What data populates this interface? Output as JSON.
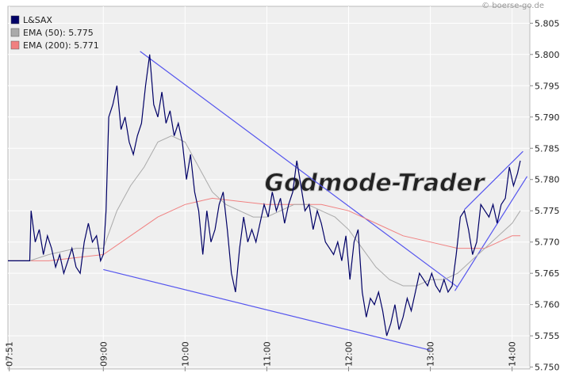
{
  "copyright": "© boerse-go.de",
  "watermark": "Godmode-Trader",
  "chart_data": {
    "type": "line",
    "xlim": [
      470,
      853
    ],
    "ylim": [
      5.7497,
      5.8077
    ],
    "xticks": [
      {
        "value": 471,
        "label": "07:51"
      },
      {
        "value": 540,
        "label": "09:00"
      },
      {
        "value": 600,
        "label": "10:00"
      },
      {
        "value": 660,
        "label": "11:00"
      },
      {
        "value": 720,
        "label": "12:00"
      },
      {
        "value": 780,
        "label": "13:00"
      },
      {
        "value": 840,
        "label": "14:00"
      }
    ],
    "yticks": [
      {
        "value": 5.75,
        "label": "5.750"
      },
      {
        "value": 5.755,
        "label": "5.755"
      },
      {
        "value": 5.76,
        "label": "5.760"
      },
      {
        "value": 5.765,
        "label": "5.765"
      },
      {
        "value": 5.77,
        "label": "5.770"
      },
      {
        "value": 5.775,
        "label": "5.775"
      },
      {
        "value": 5.78,
        "label": "5.780"
      },
      {
        "value": 5.785,
        "label": "5.785"
      },
      {
        "value": 5.79,
        "label": "5.790"
      },
      {
        "value": 5.795,
        "label": "5.795"
      },
      {
        "value": 5.8,
        "label": "5.800"
      },
      {
        "value": 5.805,
        "label": "5.805"
      }
    ],
    "grid": true,
    "series": [
      {
        "name": "L&SAX",
        "color": "#000066",
        "x": [
          470,
          486,
          487,
          490,
          493,
          496,
          499,
          502,
          505,
          508,
          511,
          514,
          517,
          520,
          523,
          526,
          529,
          532,
          535,
          538,
          540,
          542,
          544,
          547,
          550,
          553,
          556,
          559,
          562,
          565,
          568,
          571,
          574,
          577,
          580,
          583,
          586,
          589,
          592,
          595,
          598,
          601,
          604,
          607,
          610,
          613,
          616,
          619,
          622,
          625,
          628,
          631,
          634,
          637,
          640,
          643,
          646,
          649,
          652,
          655,
          658,
          661,
          664,
          667,
          670,
          673,
          676,
          679,
          682,
          685,
          688,
          691,
          694,
          697,
          700,
          703,
          706,
          709,
          712,
          715,
          718,
          721,
          724,
          727,
          730,
          733,
          736,
          739,
          742,
          745,
          748,
          751,
          754,
          757,
          760,
          763,
          766,
          769,
          772,
          775,
          778,
          781,
          784,
          787,
          790,
          793,
          796,
          799,
          802,
          805,
          808,
          811,
          814,
          817,
          820,
          823,
          826,
          829,
          832,
          835,
          838,
          841,
          844,
          846
        ],
        "values": [
          5.767,
          5.767,
          5.775,
          5.77,
          5.772,
          5.768,
          5.771,
          5.769,
          5.766,
          5.768,
          5.765,
          5.767,
          5.769,
          5.766,
          5.765,
          5.77,
          5.773,
          5.77,
          5.771,
          5.767,
          5.768,
          5.775,
          5.79,
          5.792,
          5.795,
          5.788,
          5.79,
          5.786,
          5.784,
          5.787,
          5.789,
          5.795,
          5.8,
          5.792,
          5.79,
          5.794,
          5.789,
          5.791,
          5.787,
          5.789,
          5.786,
          5.78,
          5.784,
          5.778,
          5.775,
          5.768,
          5.775,
          5.77,
          5.772,
          5.776,
          5.778,
          5.772,
          5.765,
          5.762,
          5.769,
          5.774,
          5.77,
          5.772,
          5.77,
          5.773,
          5.776,
          5.774,
          5.778,
          5.775,
          5.777,
          5.773,
          5.776,
          5.778,
          5.783,
          5.779,
          5.775,
          5.776,
          5.772,
          5.775,
          5.773,
          5.77,
          5.769,
          5.768,
          5.77,
          5.767,
          5.771,
          5.764,
          5.77,
          5.772,
          5.762,
          5.758,
          5.761,
          5.76,
          5.762,
          5.759,
          5.755,
          5.757,
          5.76,
          5.756,
          5.758,
          5.761,
          5.759,
          5.762,
          5.765,
          5.764,
          5.763,
          5.765,
          5.763,
          5.762,
          5.764,
          5.762,
          5.763,
          5.768,
          5.774,
          5.775,
          5.772,
          5.768,
          5.77,
          5.776,
          5.775,
          5.774,
          5.776,
          5.773,
          5.776,
          5.777,
          5.782,
          5.779,
          5.781,
          5.783
        ]
      },
      {
        "name": "EMA (50): 5.775",
        "color": "#aaaaaa",
        "x": [
          470,
          486,
          500,
          520,
          540,
          550,
          560,
          570,
          580,
          590,
          600,
          610,
          620,
          630,
          640,
          650,
          660,
          670,
          680,
          690,
          700,
          710,
          720,
          730,
          740,
          750,
          760,
          770,
          780,
          790,
          800,
          810,
          820,
          830,
          840,
          846
        ],
        "values": [
          5.767,
          5.767,
          5.768,
          5.769,
          5.769,
          5.775,
          5.779,
          5.782,
          5.786,
          5.787,
          5.786,
          5.782,
          5.778,
          5.776,
          5.775,
          5.774,
          5.774,
          5.775,
          5.776,
          5.776,
          5.775,
          5.774,
          5.772,
          5.769,
          5.766,
          5.764,
          5.763,
          5.763,
          5.764,
          5.764,
          5.765,
          5.767,
          5.769,
          5.771,
          5.773,
          5.775
        ]
      },
      {
        "name": "EMA (200): 5.771",
        "color": "#f08080",
        "x": [
          470,
          500,
          540,
          560,
          580,
          600,
          620,
          640,
          660,
          680,
          700,
          720,
          740,
          760,
          780,
          800,
          820,
          840,
          846
        ],
        "values": [
          5.767,
          5.767,
          5.768,
          5.771,
          5.774,
          5.776,
          5.777,
          5.7765,
          5.776,
          5.776,
          5.776,
          5.775,
          5.773,
          5.771,
          5.77,
          5.769,
          5.769,
          5.771,
          5.771
        ]
      }
    ],
    "trendlines": [
      {
        "color": "#5555ee",
        "x": [
          567,
          800
        ],
        "y": [
          5.8005,
          5.7628
        ]
      },
      {
        "color": "#5555ee",
        "x": [
          540,
          780
        ],
        "y": [
          5.7656,
          5.7527
        ]
      },
      {
        "color": "#5555ee",
        "x": [
          798,
          851
        ],
        "y": [
          5.7622,
          5.7805
        ]
      },
      {
        "color": "#5555ee",
        "x": [
          805,
          848
        ],
        "y": [
          5.7752,
          5.7845
        ]
      }
    ]
  }
}
